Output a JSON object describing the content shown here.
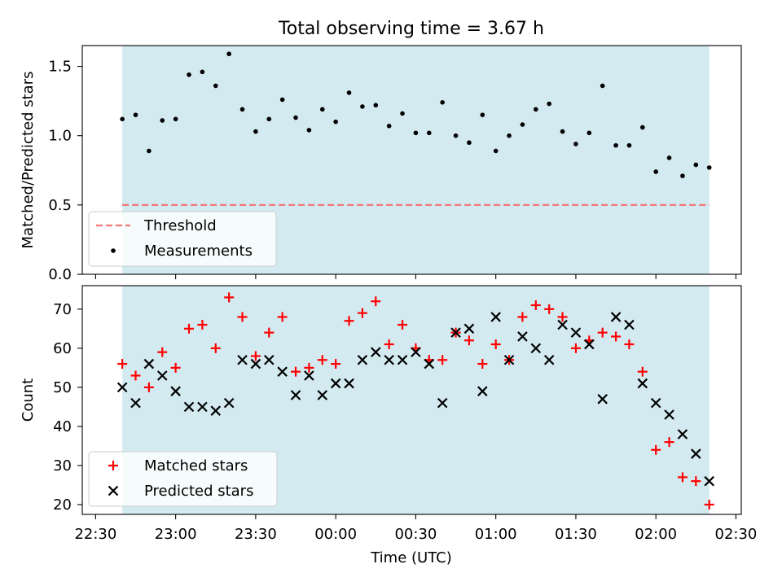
{
  "title": "Total observing time = 3.67 h",
  "colors": {
    "span_fill": "#d3eaf0",
    "threshold": "#f07878",
    "measurements": "#000000",
    "matched": "#ff0000",
    "predicted": "#000000"
  },
  "chart_data": [
    {
      "type": "scatter",
      "title": "Total observing time = 3.67 h",
      "xlabel": "",
      "ylabel": "Matched/Predicted stars",
      "xlim": [
        "22:25",
        "02:32"
      ],
      "ylim": [
        0,
        1.65
      ],
      "yticks": [
        0.0,
        0.5,
        1.0,
        1.5
      ],
      "ytick_labels": [
        "0.0",
        "0.5",
        "1.0",
        "1.5"
      ],
      "shaded_span": [
        "22:40",
        "02:20"
      ],
      "grid": false,
      "legend_position": "lower-left",
      "threshold": {
        "name": "Threshold",
        "y": 0.5,
        "x_range": [
          "22:40",
          "02:20"
        ],
        "style": "dashed"
      },
      "series": [
        {
          "name": "Measurements",
          "marker": "dot",
          "x": [
            "22:40",
            "22:45",
            "22:50",
            "22:55",
            "23:00",
            "23:05",
            "23:10",
            "23:15",
            "23:20",
            "23:25",
            "23:30",
            "23:35",
            "23:40",
            "23:45",
            "23:50",
            "23:55",
            "00:00",
            "00:05",
            "00:10",
            "00:15",
            "00:20",
            "00:25",
            "00:30",
            "00:35",
            "00:40",
            "00:45",
            "00:50",
            "00:55",
            "01:00",
            "01:05",
            "01:10",
            "01:15",
            "01:20",
            "01:25",
            "01:30",
            "01:35",
            "01:40",
            "01:45",
            "01:50",
            "01:55",
            "02:00",
            "02:05",
            "02:10",
            "02:15",
            "02:20"
          ],
          "y": [
            1.12,
            1.15,
            0.89,
            1.11,
            1.12,
            1.44,
            1.46,
            1.36,
            1.59,
            1.19,
            1.03,
            1.12,
            1.26,
            1.13,
            1.04,
            1.19,
            1.1,
            1.31,
            1.21,
            1.22,
            1.07,
            1.16,
            1.02,
            1.02,
            1.24,
            1.0,
            0.95,
            1.15,
            0.89,
            1.0,
            1.08,
            1.19,
            1.23,
            1.03,
            0.94,
            1.02,
            1.36,
            0.93,
            0.93,
            1.06,
            0.74,
            0.84,
            0.71,
            0.79,
            0.77
          ]
        }
      ]
    },
    {
      "type": "scatter",
      "xlabel": "Time (UTC)",
      "ylabel": "Count",
      "xlim": [
        "22:25",
        "02:32"
      ],
      "ylim": [
        17.5,
        76
      ],
      "yticks": [
        20,
        30,
        40,
        50,
        60,
        70
      ],
      "ytick_labels": [
        "20",
        "30",
        "40",
        "50",
        "60",
        "70"
      ],
      "xticks": [
        "22:30",
        "23:00",
        "23:30",
        "00:00",
        "00:30",
        "01:00",
        "01:30",
        "02:00",
        "02:30"
      ],
      "shaded_span": [
        "22:40",
        "02:20"
      ],
      "grid": false,
      "legend_position": "lower-left",
      "series": [
        {
          "name": "Matched stars",
          "marker": "plus",
          "x": [
            "22:40",
            "22:45",
            "22:50",
            "22:55",
            "23:00",
            "23:05",
            "23:10",
            "23:15",
            "23:20",
            "23:25",
            "23:30",
            "23:35",
            "23:40",
            "23:45",
            "23:50",
            "23:55",
            "00:00",
            "00:05",
            "00:10",
            "00:15",
            "00:20",
            "00:25",
            "00:30",
            "00:35",
            "00:40",
            "00:45",
            "00:50",
            "00:55",
            "01:00",
            "01:05",
            "01:10",
            "01:15",
            "01:20",
            "01:25",
            "01:30",
            "01:35",
            "01:40",
            "01:45",
            "01:50",
            "01:55",
            "02:00",
            "02:05",
            "02:10",
            "02:15",
            "02:20"
          ],
          "y": [
            56,
            53,
            50,
            59,
            55,
            65,
            66,
            60,
            73,
            68,
            58,
            64,
            68,
            54,
            55,
            57,
            56,
            67,
            69,
            72,
            61,
            66,
            60,
            57,
            57,
            64,
            62,
            56,
            61,
            57,
            68,
            71,
            70,
            68,
            60,
            62,
            64,
            63,
            61,
            54,
            34,
            36,
            27,
            26,
            20
          ]
        },
        {
          "name": "Predicted stars",
          "marker": "x",
          "x": [
            "22:40",
            "22:45",
            "22:50",
            "22:55",
            "23:00",
            "23:05",
            "23:10",
            "23:15",
            "23:20",
            "23:25",
            "23:30",
            "23:35",
            "23:40",
            "23:45",
            "23:50",
            "23:55",
            "00:00",
            "00:05",
            "00:10",
            "00:15",
            "00:20",
            "00:25",
            "00:30",
            "00:35",
            "00:40",
            "00:45",
            "00:50",
            "00:55",
            "01:00",
            "01:05",
            "01:10",
            "01:15",
            "01:20",
            "01:25",
            "01:30",
            "01:35",
            "01:40",
            "01:45",
            "01:50",
            "01:55",
            "02:00",
            "02:05",
            "02:10",
            "02:15",
            "02:20"
          ],
          "y": [
            50,
            46,
            56,
            53,
            49,
            45,
            45,
            44,
            46,
            57,
            56,
            57,
            54,
            48,
            53,
            48,
            51,
            51,
            57,
            59,
            57,
            57,
            59,
            56,
            46,
            64,
            65,
            49,
            68,
            57,
            63,
            60,
            57,
            66,
            64,
            61,
            47,
            68,
            66,
            51,
            46,
            43,
            38,
            33,
            26
          ]
        }
      ]
    }
  ]
}
